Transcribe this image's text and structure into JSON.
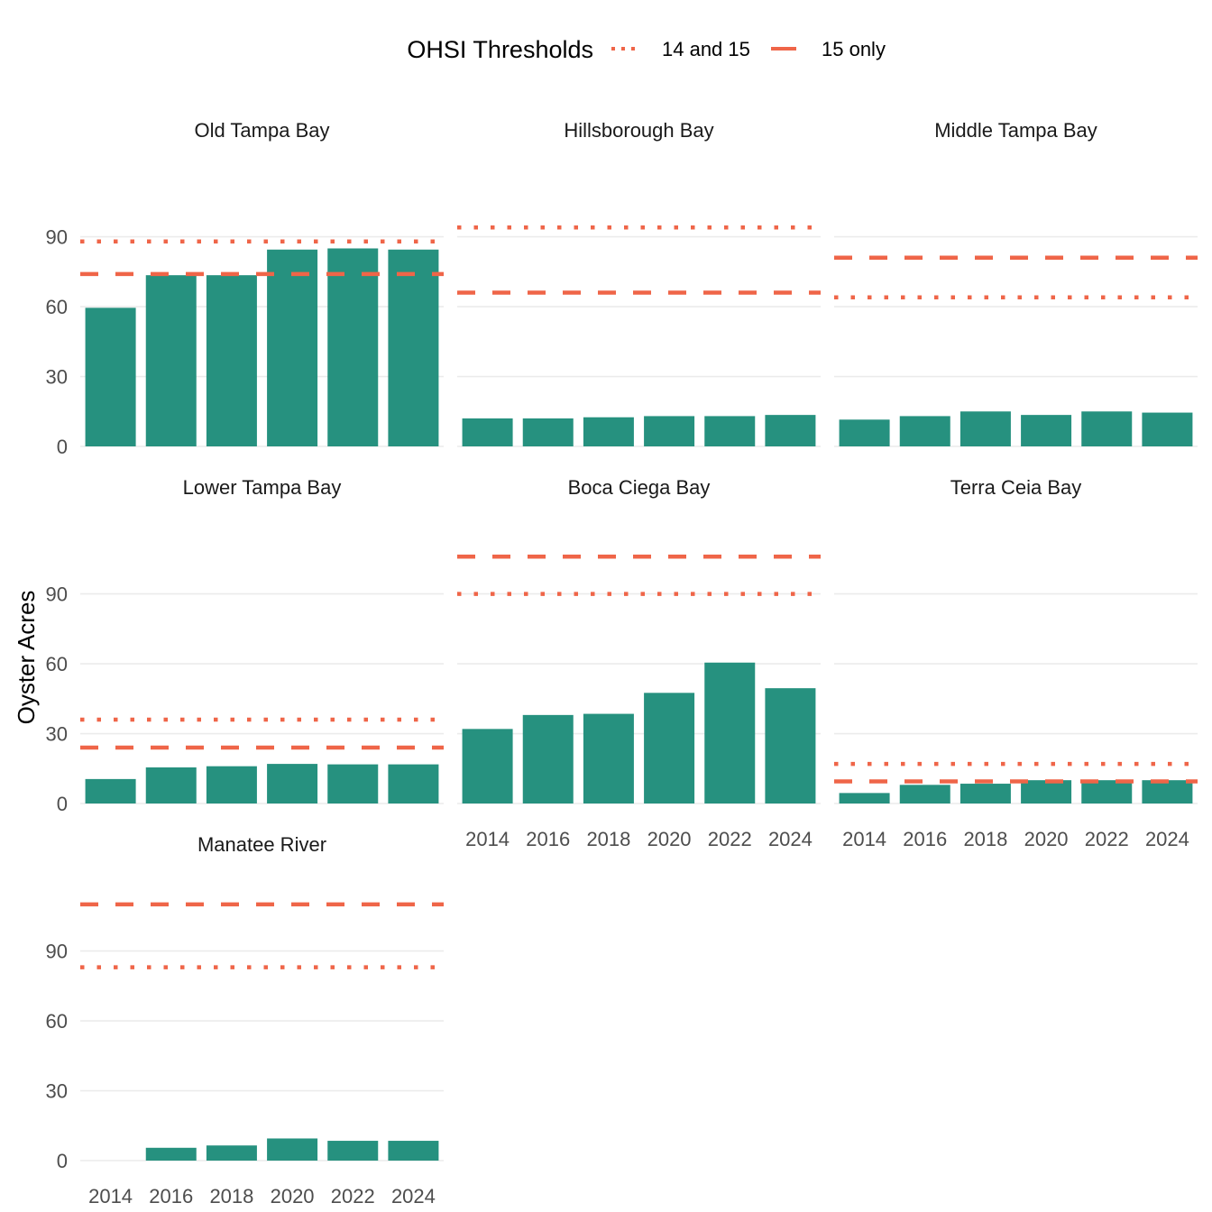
{
  "chart_data": {
    "type": "bar",
    "ylabel": "Oyster Acres",
    "xlabel": "",
    "x_ticks": [
      "2014",
      "2016",
      "2018",
      "2020",
      "2022",
      "2024"
    ],
    "y_ticks": [
      0,
      30,
      60,
      90
    ],
    "ylim": [
      0,
      115
    ],
    "xlim": [
      2013,
      2025
    ],
    "grid": "horizontal major only",
    "legend": {
      "title": "OHSI Thresholds",
      "position": "top",
      "items": [
        {
          "label": "14 and 15",
          "linetype": "dotted"
        },
        {
          "label": "15 only",
          "linetype": "dashed"
        }
      ]
    },
    "colors": {
      "bar": "#26917F",
      "threshold": "#EF6548"
    },
    "panels": [
      {
        "name": "Old Tampa Bay",
        "years": [
          2014,
          2016,
          2018,
          2020,
          2022,
          2024
        ],
        "values": [
          59.5,
          73.5,
          73.5,
          84.5,
          85,
          84.5
        ],
        "threshold_14_15": 88,
        "threshold_15": 74
      },
      {
        "name": "Hillsborough Bay",
        "years": [
          2014,
          2016,
          2018,
          2020,
          2022,
          2024
        ],
        "values": [
          12,
          12,
          12.5,
          13,
          13,
          13.5
        ],
        "threshold_14_15": 94,
        "threshold_15": 66
      },
      {
        "name": "Middle Tampa Bay",
        "years": [
          2014,
          2016,
          2018,
          2020,
          2022,
          2024
        ],
        "values": [
          11.5,
          13,
          15,
          13.5,
          15,
          14.5
        ],
        "threshold_14_15": 64,
        "threshold_15": 81
      },
      {
        "name": "Lower Tampa Bay",
        "years": [
          2014,
          2016,
          2018,
          2020,
          2022,
          2024
        ],
        "values": [
          10.5,
          15.5,
          16,
          17,
          16.8,
          16.8
        ],
        "threshold_14_15": 36,
        "threshold_15": 24
      },
      {
        "name": "Boca Ciega Bay",
        "years": [
          2014,
          2016,
          2018,
          2020,
          2022,
          2024
        ],
        "values": [
          32,
          38,
          38.5,
          47.5,
          60.5,
          49.5
        ],
        "threshold_14_15": 90,
        "threshold_15": 106
      },
      {
        "name": "Terra Ceia Bay",
        "years": [
          2014,
          2016,
          2018,
          2020,
          2022,
          2024
        ],
        "values": [
          4.5,
          8,
          8.5,
          10,
          10,
          10
        ],
        "threshold_14_15": 17,
        "threshold_15": 9.5
      },
      {
        "name": "Manatee River",
        "years": [
          2016,
          2018,
          2020,
          2022,
          2024
        ],
        "values": [
          5.5,
          6.5,
          9.5,
          8.5,
          8.5
        ],
        "threshold_14_15": 83,
        "threshold_15": 110
      }
    ]
  }
}
